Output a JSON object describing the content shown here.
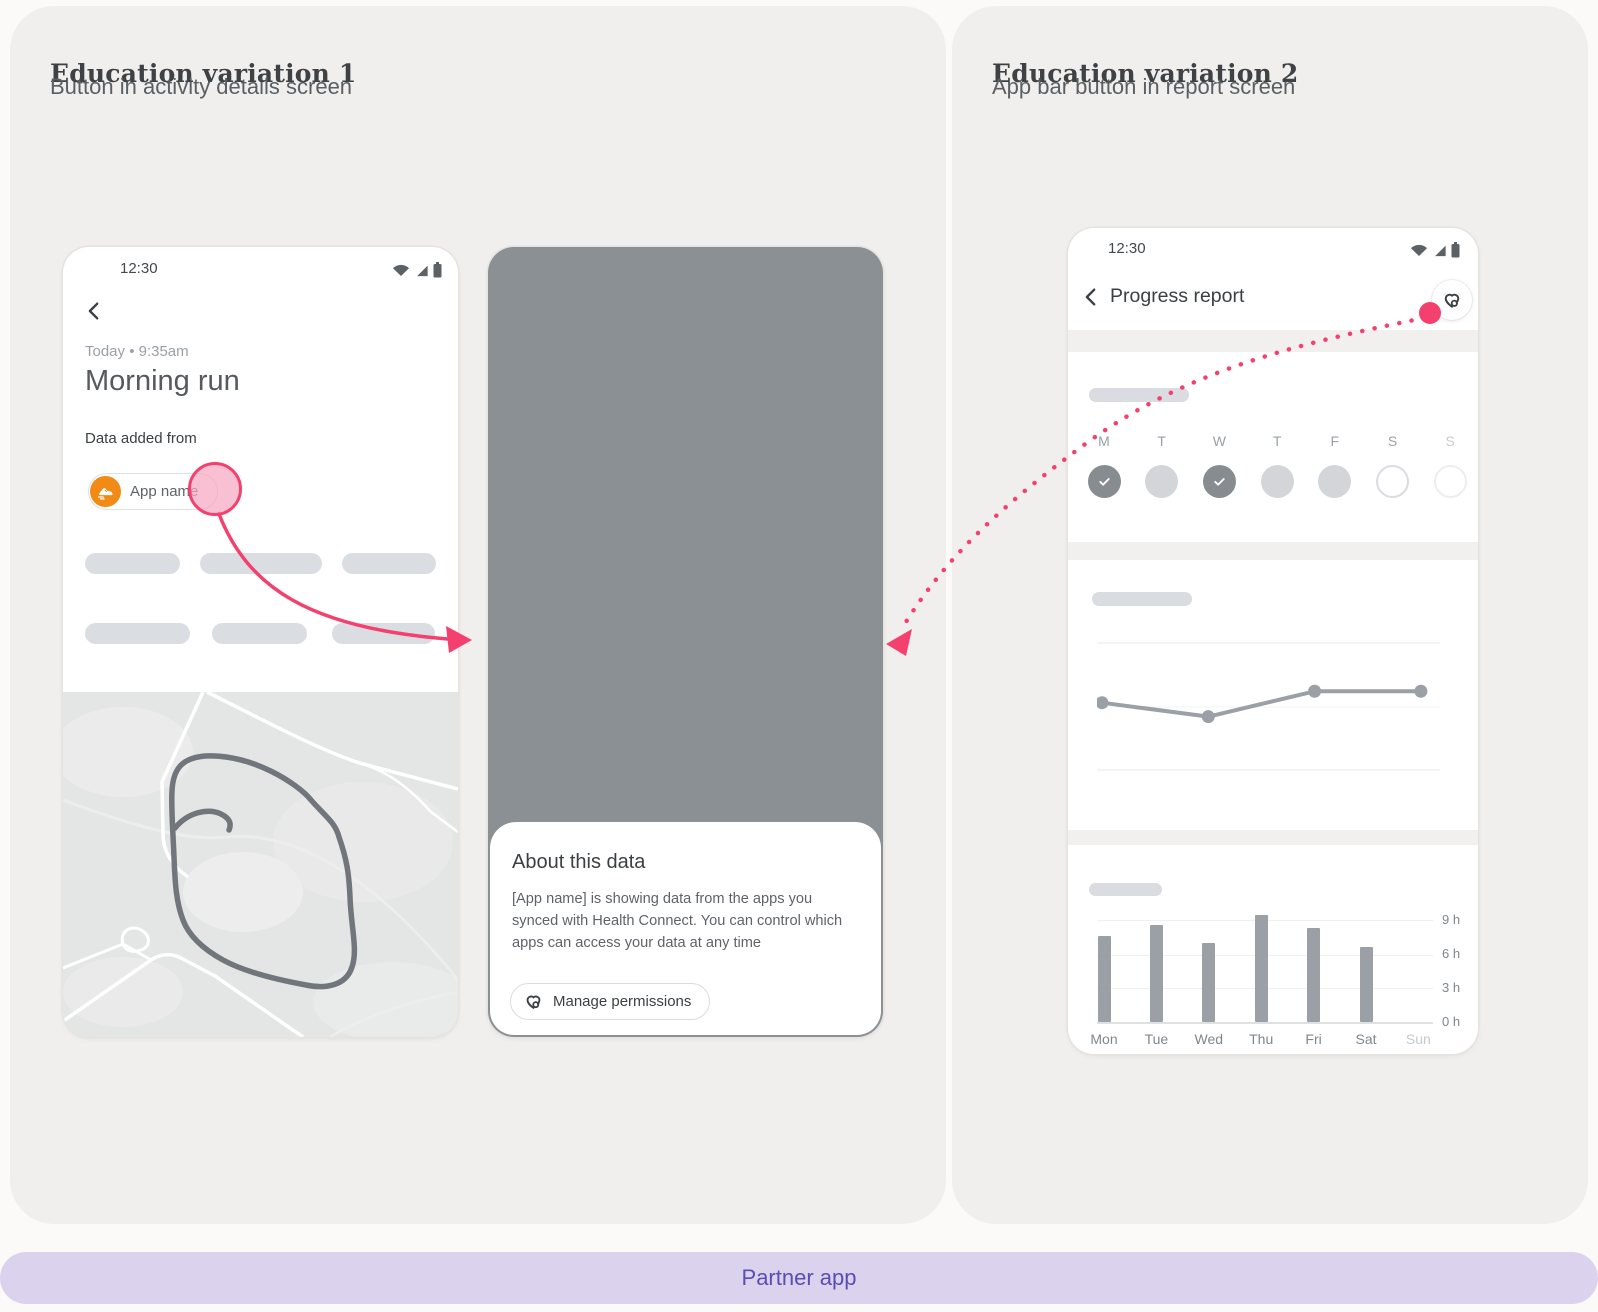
{
  "colors": {
    "accent_pink": "#F4406E",
    "partner_purple": "#5C4DB1",
    "partner_bar_bg": "#DBD3EE",
    "app_icon_orange": "#F28B16",
    "scrim_gray": "#8A9094"
  },
  "left_panel": {
    "title": "Education variation 1",
    "subtitle": "Button in activity details screen",
    "activity_screen": {
      "status_time": "12:30",
      "timestamp": "Today • 9:35am",
      "title": "Morning run",
      "section_label": "Data added from",
      "app_chip_label": "App name",
      "app_chip_icon": "running-shoe-icon"
    },
    "sheet_screen": {
      "sheet_title": "About this data",
      "sheet_body": "[App name] is showing data from the apps you synced with Health Connect. You can control which apps can access your data at any time",
      "manage_button_label": "Manage permissions",
      "manage_button_icon": "health-connect-icon"
    }
  },
  "right_panel": {
    "title": "Education variation 2",
    "subtitle": "App bar button in report screen",
    "report_screen": {
      "status_time": "12:30",
      "app_bar_title": "Progress report",
      "app_bar_action_icon": "health-connect-icon",
      "week": {
        "labels": [
          "M",
          "T",
          "W",
          "T",
          "F",
          "S",
          "S"
        ],
        "states": [
          "checked",
          "filled",
          "checked",
          "filled",
          "filled",
          "outline",
          "outline-faint"
        ],
        "muted_label_indexes": [
          6
        ]
      }
    }
  },
  "partner_bar_label": "Partner app",
  "chart_data": [
    {
      "type": "line",
      "x": [
        1,
        2,
        3,
        4
      ],
      "values": [
        5.3,
        4.2,
        6.2,
        6.2
      ],
      "ylim": [
        0,
        10
      ],
      "title": "",
      "xlabel": "",
      "ylabel": "",
      "grid": "3 horizontal gridlines, no axis labels (placeholder report chart)"
    },
    {
      "type": "bar",
      "categories": [
        "Mon",
        "Tue",
        "Wed",
        "Thu",
        "Fri",
        "Sat",
        "Sun"
      ],
      "values": [
        7.6,
        8.6,
        7.0,
        9.4,
        8.3,
        6.6,
        0
      ],
      "yticks": [
        "9 h",
        "6 h",
        "3 h",
        "0 h"
      ],
      "ytick_values": [
        9,
        6,
        3,
        0
      ],
      "ylim": [
        0,
        10.5
      ],
      "muted_categories": [
        "Sun"
      ],
      "title": "",
      "xlabel": "",
      "ylabel": "hours"
    }
  ]
}
